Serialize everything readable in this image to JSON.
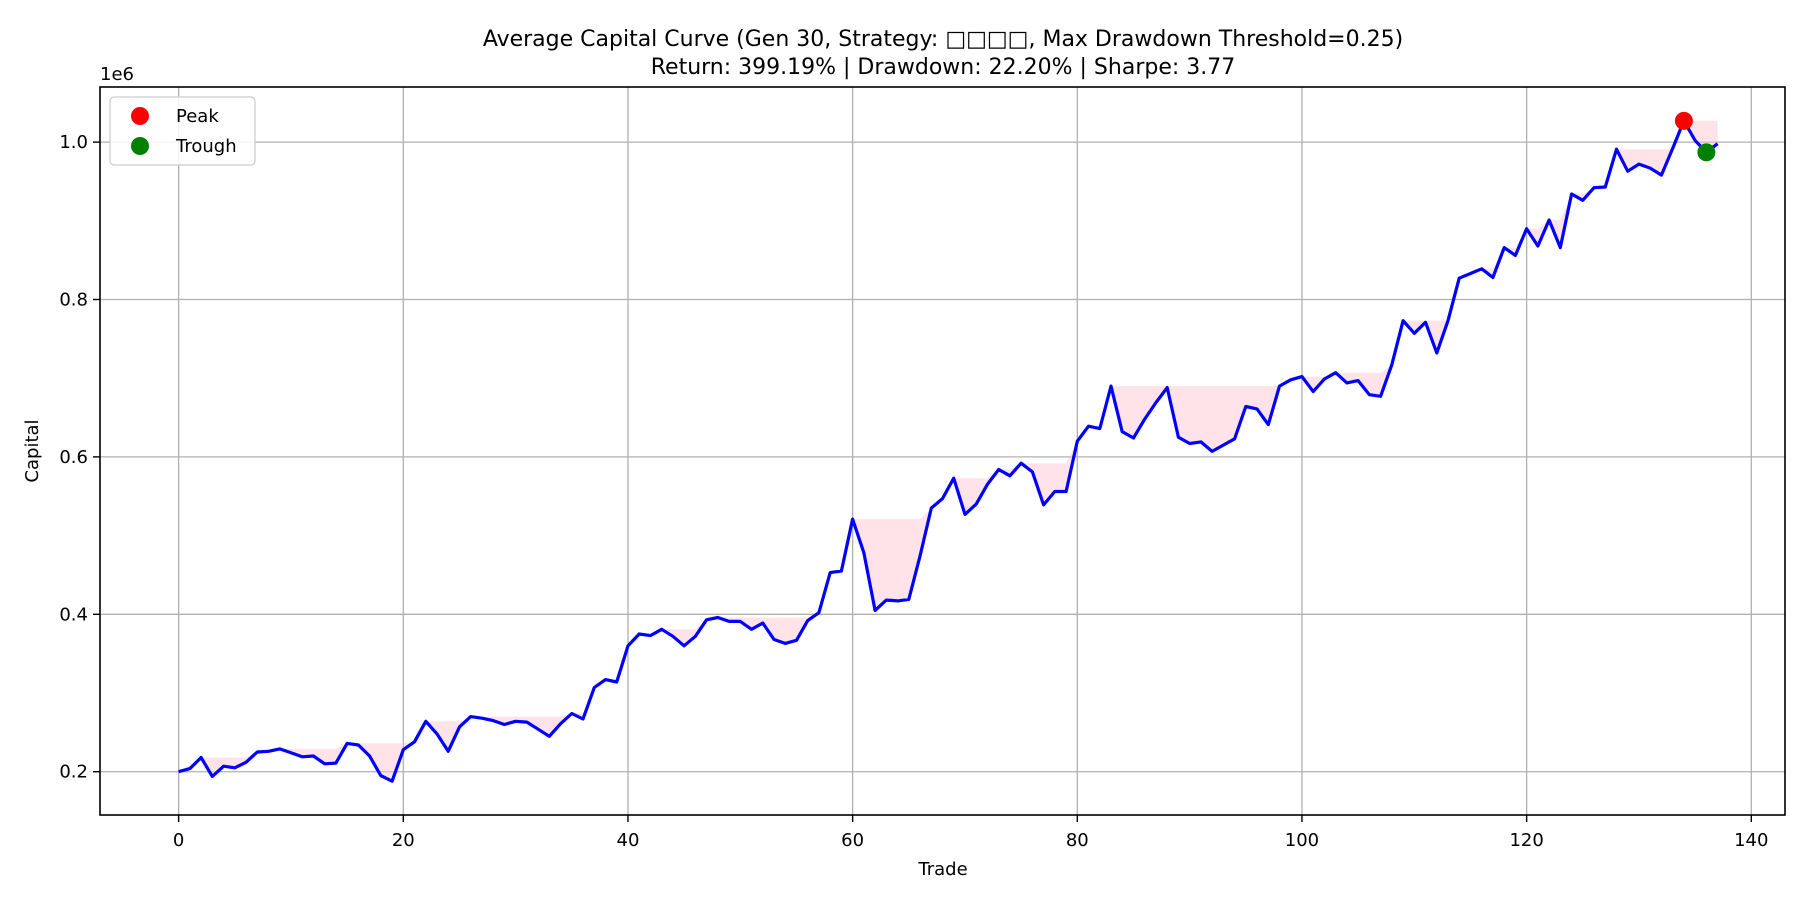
{
  "chart_data": {
    "type": "line",
    "title": "Average Capital Curve (Gen 30, Strategy: □□□□, Max Drawdown Threshold=0.25)",
    "subtitle": "Return: 399.19% | Drawdown: 22.20% | Sharpe: 3.77",
    "xlabel": "Trade",
    "ylabel": "Capital",
    "y_offset_label": "1e6",
    "xlim": [
      -7,
      143
    ],
    "ylim": [
      145000,
      1070000
    ],
    "xticks": [
      0,
      20,
      40,
      60,
      80,
      100,
      120,
      140
    ],
    "xtick_labels": [
      "0",
      "20",
      "40",
      "60",
      "80",
      "100",
      "120",
      "140"
    ],
    "yticks": [
      200000,
      400000,
      600000,
      800000,
      1000000
    ],
    "ytick_labels": [
      "0.2",
      "0.4",
      "0.6",
      "0.8",
      "1.0"
    ],
    "grid": true,
    "legend_position": "upper-left",
    "series": [
      {
        "color": "#0000ff",
        "values": [
          200000,
          204000,
          218000,
          194000,
          207000,
          205000,
          212000,
          225000,
          226000,
          229000,
          224000,
          219000,
          220000,
          210000,
          211000,
          236000,
          234000,
          220000,
          195000,
          188000,
          228000,
          238000,
          264000,
          248000,
          226000,
          257000,
          270000,
          268000,
          265000,
          260000,
          264000,
          263000,
          254000,
          245000,
          261000,
          274000,
          267000,
          307000,
          317000,
          314000,
          360000,
          375000,
          373000,
          381000,
          372000,
          360000,
          372000,
          393000,
          396000,
          391000,
          391000,
          381000,
          389000,
          368000,
          363000,
          367000,
          392000,
          402000,
          453000,
          455000,
          521000,
          478000,
          405000,
          418000,
          417000,
          419000,
          474000,
          535000,
          547000,
          573000,
          527000,
          540000,
          565000,
          584000,
          576000,
          592000,
          581000,
          539000,
          556000,
          556000,
          620000,
          639000,
          636000,
          690000,
          632000,
          624000,
          648000,
          669000,
          688000,
          625000,
          617000,
          619000,
          607000,
          615000,
          623000,
          664000,
          661000,
          641000,
          690000,
          698000,
          702000,
          683000,
          699000,
          707000,
          694000,
          697000,
          679000,
          677000,
          717000,
          773000,
          757000,
          771000,
          732000,
          773000,
          827000,
          833000,
          839000,
          828000,
          866000,
          856000,
          890000,
          868000,
          901000,
          866000,
          934000,
          926000,
          942000,
          943000,
          991000,
          963000,
          972000,
          967000,
          958000,
          992000,
          1027000,
          1002000,
          987000,
          998000
        ]
      }
    ],
    "drawdown_fill_color": "#ffc0cb",
    "peak_color": "#ff0000",
    "trough_color": "#008000",
    "markers": [
      {
        "label": "Peak",
        "color": "#ff0000",
        "x": 134,
        "y": 1027000
      },
      {
        "label": "Trough",
        "color": "#008000",
        "x": 136,
        "y": 987000
      }
    ]
  }
}
